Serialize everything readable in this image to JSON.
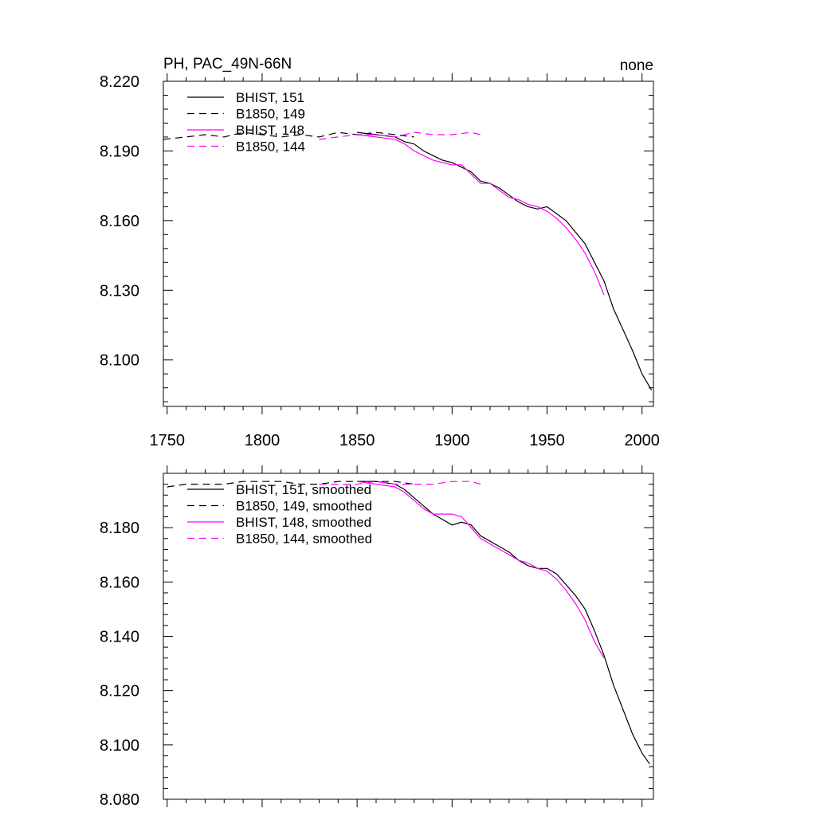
{
  "colors": {
    "bhist": "#000000",
    "b1850": "#ff00ff"
  },
  "chart_data": [
    {
      "type": "line",
      "title": "PH, PAC_49N-66N",
      "title_right": "none",
      "xlim": [
        1748,
        2006
      ],
      "ylim": [
        8.08,
        8.22
      ],
      "xticks": [
        1750,
        1800,
        1850,
        1900,
        1950,
        2000
      ],
      "xtick_labels": [
        "1750",
        "1800",
        "1850",
        "1900",
        "1950",
        "2000"
      ],
      "yticks": [
        8.1,
        8.13,
        8.16,
        8.19,
        8.22
      ],
      "ytick_labels": [
        "8.100",
        "8.130",
        "8.160",
        "8.190",
        "8.220"
      ],
      "legend_position": "top-left",
      "series": [
        {
          "name": "BHIST, 151",
          "color": "#000000",
          "dash": "solid",
          "x": [
            1850,
            1860,
            1870,
            1875,
            1880,
            1885,
            1890,
            1895,
            1900,
            1905,
            1910,
            1915,
            1920,
            1925,
            1930,
            1935,
            1940,
            1945,
            1950,
            1955,
            1960,
            1965,
            1970,
            1975,
            1980,
            1985,
            1990,
            1995,
            2000,
            2005
          ],
          "y": [
            8.198,
            8.197,
            8.196,
            8.194,
            8.193,
            8.19,
            8.188,
            8.186,
            8.185,
            8.183,
            8.181,
            8.177,
            8.176,
            8.174,
            8.171,
            8.168,
            8.166,
            8.165,
            8.166,
            8.163,
            8.16,
            8.155,
            8.15,
            8.142,
            8.134,
            8.122,
            8.113,
            8.104,
            8.094,
            8.087
          ]
        },
        {
          "name": "B1850, 149",
          "color": "#000000",
          "dash": "dashed",
          "x": [
            1748,
            1760,
            1770,
            1780,
            1790,
            1800,
            1810,
            1820,
            1830,
            1840,
            1850,
            1860,
            1870,
            1880
          ],
          "y": [
            8.195,
            8.196,
            8.197,
            8.196,
            8.198,
            8.197,
            8.196,
            8.197,
            8.196,
            8.198,
            8.197,
            8.198,
            8.197,
            8.196
          ]
        },
        {
          "name": "BHIST, 148",
          "color": "#ff00ff",
          "dash": "solid",
          "x": [
            1850,
            1860,
            1870,
            1875,
            1880,
            1885,
            1890,
            1895,
            1900,
            1905,
            1910,
            1915,
            1920,
            1925,
            1930,
            1935,
            1940,
            1945,
            1950,
            1955,
            1960,
            1965,
            1970,
            1975,
            1980
          ],
          "y": [
            8.197,
            8.196,
            8.195,
            8.193,
            8.19,
            8.188,
            8.186,
            8.185,
            8.184,
            8.184,
            8.18,
            8.176,
            8.176,
            8.173,
            8.17,
            8.169,
            8.167,
            8.166,
            8.164,
            8.161,
            8.157,
            8.152,
            8.146,
            8.138,
            8.128
          ]
        },
        {
          "name": "B1850, 144",
          "color": "#ff00ff",
          "dash": "dashed",
          "x": [
            1830,
            1840,
            1850,
            1860,
            1870,
            1880,
            1890,
            1900,
            1910,
            1915
          ],
          "y": [
            8.195,
            8.196,
            8.197,
            8.197,
            8.196,
            8.198,
            8.197,
            8.197,
            8.198,
            8.197
          ]
        }
      ]
    },
    {
      "type": "line",
      "title": "",
      "xlim": [
        1748,
        2006
      ],
      "ylim": [
        8.08,
        8.2
      ],
      "xticks": [
        1750,
        1800,
        1850,
        1900,
        1950,
        2000
      ],
      "xtick_labels": [],
      "yticks": [
        8.08,
        8.1,
        8.12,
        8.14,
        8.16,
        8.18
      ],
      "ytick_labels": [
        "8.080",
        "8.100",
        "8.120",
        "8.140",
        "8.160",
        "8.180"
      ],
      "legend_position": "top-left",
      "series": [
        {
          "name": "BHIST, 151, smoothed",
          "color": "#000000",
          "dash": "solid",
          "x": [
            1850,
            1860,
            1870,
            1875,
            1880,
            1885,
            1890,
            1895,
            1900,
            1905,
            1910,
            1915,
            1920,
            1925,
            1930,
            1935,
            1940,
            1945,
            1950,
            1955,
            1960,
            1965,
            1970,
            1975,
            1980,
            1985,
            1990,
            1995,
            2000,
            2004
          ],
          "y": [
            8.197,
            8.197,
            8.196,
            8.194,
            8.191,
            8.188,
            8.185,
            8.183,
            8.181,
            8.182,
            8.181,
            8.177,
            8.175,
            8.173,
            8.171,
            8.168,
            8.166,
            8.165,
            8.165,
            8.163,
            8.159,
            8.155,
            8.15,
            8.142,
            8.133,
            8.122,
            8.113,
            8.104,
            8.097,
            8.093
          ]
        },
        {
          "name": "B1850, 149, smoothed",
          "color": "#000000",
          "dash": "dashed",
          "x": [
            1750,
            1760,
            1770,
            1780,
            1790,
            1800,
            1810,
            1820,
            1830,
            1840,
            1850,
            1860,
            1870,
            1880
          ],
          "y": [
            8.195,
            8.196,
            8.196,
            8.196,
            8.197,
            8.197,
            8.197,
            8.196,
            8.196,
            8.197,
            8.197,
            8.197,
            8.197,
            8.196
          ]
        },
        {
          "name": "BHIST, 148, smoothed",
          "color": "#ff00ff",
          "dash": "solid",
          "x": [
            1850,
            1860,
            1870,
            1875,
            1880,
            1885,
            1890,
            1895,
            1900,
            1905,
            1910,
            1915,
            1920,
            1925,
            1930,
            1935,
            1940,
            1945,
            1950,
            1955,
            1960,
            1965,
            1970,
            1975,
            1980
          ],
          "y": [
            8.197,
            8.196,
            8.195,
            8.193,
            8.19,
            8.187,
            8.185,
            8.185,
            8.185,
            8.184,
            8.18,
            8.176,
            8.174,
            8.172,
            8.17,
            8.168,
            8.167,
            8.165,
            8.164,
            8.161,
            8.157,
            8.152,
            8.146,
            8.138,
            8.132
          ]
        },
        {
          "name": "B1850, 144, smoothed",
          "color": "#ff00ff",
          "dash": "dashed",
          "x": [
            1830,
            1840,
            1850,
            1860,
            1870,
            1880,
            1890,
            1900,
            1910,
            1915
          ],
          "y": [
            8.196,
            8.196,
            8.196,
            8.197,
            8.196,
            8.196,
            8.196,
            8.197,
            8.197,
            8.196
          ]
        }
      ]
    }
  ]
}
